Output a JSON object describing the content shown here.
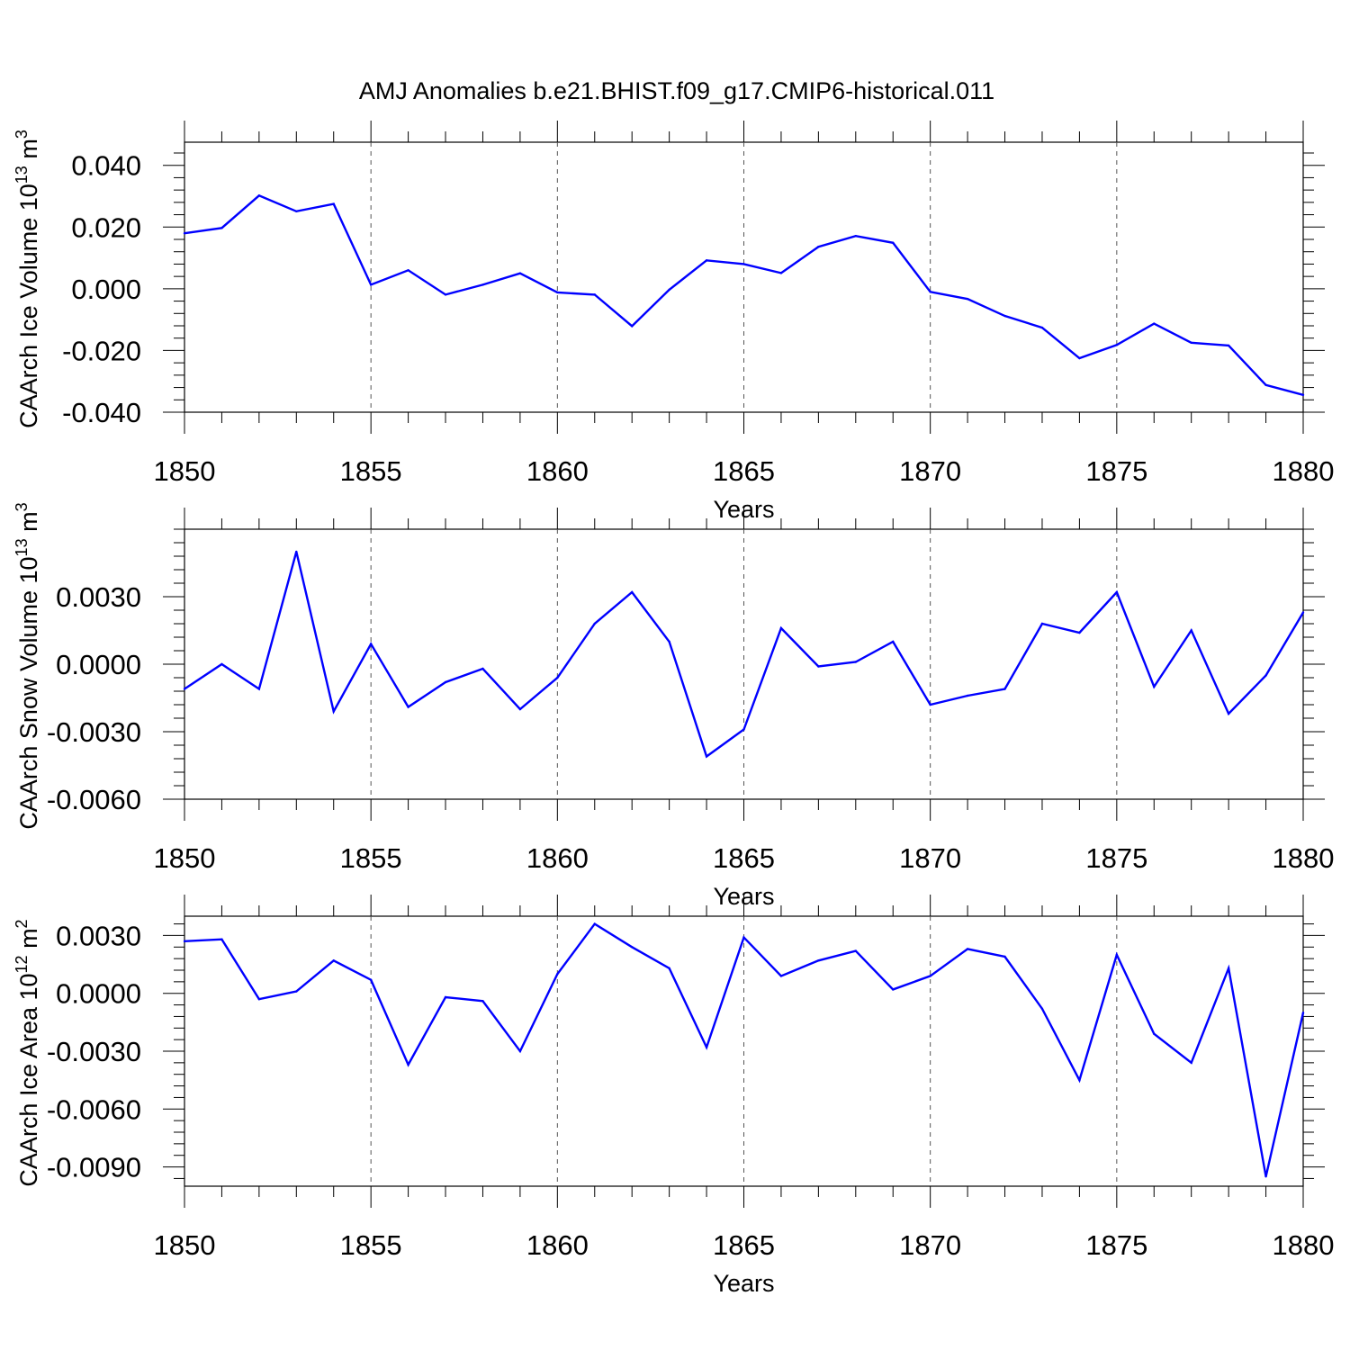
{
  "chart_data": {
    "title": "AMJ Anomalies b.e21.BHIST.f09_g17.CMIP6-historical.011",
    "line_color": "#0000ff",
    "panels": [
      {
        "type": "line",
        "ylabel_main": "CAArch Ice Volume 10",
        "ylabel_exp": "13",
        "ylabel_unit": " m",
        "ylabel_unit_exp": "3",
        "xlabel": "Years",
        "xlim": [
          1850,
          1880
        ],
        "ylim": [
          -0.04,
          0.0475
        ],
        "yticks": [
          -0.04,
          -0.02,
          0.0,
          0.02,
          0.04
        ],
        "ytick_labels": [
          "-0.040",
          "-0.020",
          "0.000",
          "0.020",
          "0.040"
        ],
        "xticks": [
          1850,
          1855,
          1860,
          1865,
          1870,
          1875,
          1880
        ],
        "xtick_labels": [
          "1850",
          "1855",
          "1860",
          "1865",
          "1870",
          "1875",
          "1880"
        ],
        "x": [
          1850,
          1851,
          1852,
          1853,
          1854,
          1855,
          1856,
          1857,
          1858,
          1859,
          1860,
          1861,
          1862,
          1863,
          1864,
          1865,
          1866,
          1867,
          1868,
          1869,
          1870,
          1871,
          1872,
          1873,
          1874,
          1875,
          1876,
          1877,
          1878,
          1879,
          1880
        ],
        "y": [
          0.018,
          0.0197,
          0.0302,
          0.0251,
          0.0275,
          0.0013,
          0.006,
          -0.0019,
          0.0013,
          0.005,
          -0.0012,
          -0.0019,
          -0.0121,
          -0.0003,
          0.0092,
          0.008,
          0.0051,
          0.0136,
          0.0171,
          0.0149,
          -0.001,
          -0.0033,
          -0.0088,
          -0.0126,
          -0.0225,
          -0.0182,
          -0.0113,
          -0.0175,
          -0.0184,
          -0.0312,
          -0.0344
        ]
      },
      {
        "type": "line",
        "ylabel_main": "CAArch Snow Volume 10",
        "ylabel_exp": "13",
        "ylabel_unit": " m",
        "ylabel_unit_exp": "3",
        "xlabel": "Years",
        "xlim": [
          1850,
          1880
        ],
        "ylim": [
          -0.006,
          0.006
        ],
        "yticks": [
          -0.006,
          -0.003,
          0.0,
          0.003
        ],
        "ytick_labels": [
          "-0.0060",
          "-0.0030",
          "0.0000",
          "0.0030"
        ],
        "xticks": [
          1850,
          1855,
          1860,
          1865,
          1870,
          1875,
          1880
        ],
        "xtick_labels": [
          "1850",
          "1855",
          "1860",
          "1865",
          "1870",
          "1875",
          "1880"
        ],
        "x": [
          1850,
          1851,
          1852,
          1853,
          1854,
          1855,
          1856,
          1857,
          1858,
          1859,
          1860,
          1861,
          1862,
          1863,
          1864,
          1865,
          1866,
          1867,
          1868,
          1869,
          1870,
          1871,
          1872,
          1873,
          1874,
          1875,
          1876,
          1877,
          1878,
          1879,
          1880
        ],
        "y": [
          -0.0011,
          0.0,
          -0.0011,
          0.005,
          -0.0021,
          0.0009,
          -0.0019,
          -0.0008,
          -0.0002,
          -0.002,
          -0.0006,
          0.0018,
          0.0032,
          0.001,
          -0.0041,
          -0.0029,
          0.0016,
          -0.0001,
          0.0001,
          0.001,
          -0.0018,
          -0.0014,
          -0.0011,
          0.0018,
          0.0014,
          0.0032,
          -0.001,
          0.0015,
          -0.0022,
          -0.0005,
          0.0023
        ]
      },
      {
        "type": "line",
        "ylabel_main": "CAArch Ice Area 10",
        "ylabel_exp": "12",
        "ylabel_unit": " m",
        "ylabel_unit_exp": "2",
        "xlabel": "Years",
        "xlim": [
          1850,
          1880
        ],
        "ylim": [
          -0.01,
          0.004
        ],
        "yticks": [
          -0.009,
          -0.006,
          -0.003,
          0.0,
          0.003
        ],
        "ytick_labels": [
          "-0.0090",
          "-0.0060",
          "-0.0030",
          "0.0000",
          "0.0030"
        ],
        "xticks": [
          1850,
          1855,
          1860,
          1865,
          1870,
          1875,
          1880
        ],
        "xtick_labels": [
          "1850",
          "1855",
          "1860",
          "1865",
          "1870",
          "1875",
          "1880"
        ],
        "x": [
          1850,
          1851,
          1852,
          1853,
          1854,
          1855,
          1856,
          1857,
          1858,
          1859,
          1860,
          1861,
          1862,
          1863,
          1864,
          1865,
          1866,
          1867,
          1868,
          1869,
          1870,
          1871,
          1872,
          1873,
          1874,
          1875,
          1876,
          1877,
          1878,
          1879,
          1880
        ],
        "y": [
          0.0027,
          0.0028,
          -0.0003,
          0.0001,
          0.0017,
          0.0007,
          -0.0037,
          -0.0002,
          -0.0004,
          -0.003,
          0.001,
          0.0036,
          0.0024,
          0.0013,
          -0.0028,
          0.0029,
          0.0009,
          0.0017,
          0.0022,
          0.0002,
          0.0009,
          0.0023,
          0.0019,
          -0.0008,
          -0.0045,
          0.002,
          -0.0021,
          -0.0036,
          0.0013,
          -0.0095,
          -0.001
        ]
      }
    ]
  }
}
